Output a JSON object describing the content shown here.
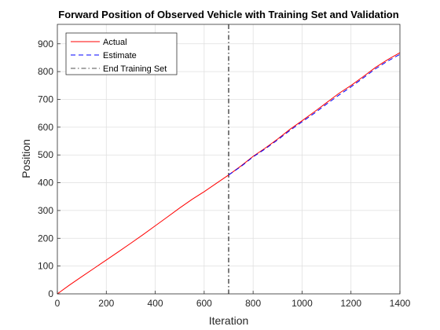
{
  "chart_data": {
    "type": "line",
    "title": "Forward Position of Observed Vehicle with Training Set and Validation",
    "xlabel": "Iteration",
    "ylabel": "Position",
    "xlim": [
      0,
      1400
    ],
    "ylim": [
      0,
      970
    ],
    "xticks": [
      0,
      200,
      400,
      600,
      800,
      1000,
      1200,
      1400
    ],
    "yticks": [
      0,
      100,
      200,
      300,
      400,
      500,
      600,
      700,
      800,
      900
    ],
    "grid": true,
    "legend_position": "top-left",
    "series": [
      {
        "name": "Actual",
        "color": "#ff0000",
        "style": "solid",
        "x": [
          0,
          50,
          100,
          150,
          200,
          250,
          300,
          350,
          400,
          450,
          500,
          550,
          600,
          650,
          700,
          750,
          800,
          850,
          900,
          950,
          1000,
          1050,
          1100,
          1150,
          1200,
          1250,
          1300,
          1350,
          1400
        ],
        "y": [
          0,
          32,
          62,
          92,
          122,
          152,
          182,
          213,
          245,
          277,
          309,
          340,
          368,
          398,
          428,
          460,
          495,
          525,
          557,
          592,
          623,
          655,
          688,
          721,
          750,
          782,
          815,
          843,
          868
        ]
      },
      {
        "name": "Estimate",
        "color": "#0000ff",
        "style": "dashed",
        "x": [
          700,
          750,
          800,
          850,
          900,
          950,
          1000,
          1050,
          1100,
          1150,
          1200,
          1250,
          1300,
          1350,
          1400
        ],
        "y": [
          428,
          458,
          493,
          522,
          554,
          588,
          619,
          650,
          683,
          715,
          745,
          777,
          810,
          838,
          862
        ]
      }
    ],
    "vline": {
      "name": "End Training Set",
      "x": 700,
      "color": "#505050",
      "style": "dash-dot"
    }
  }
}
